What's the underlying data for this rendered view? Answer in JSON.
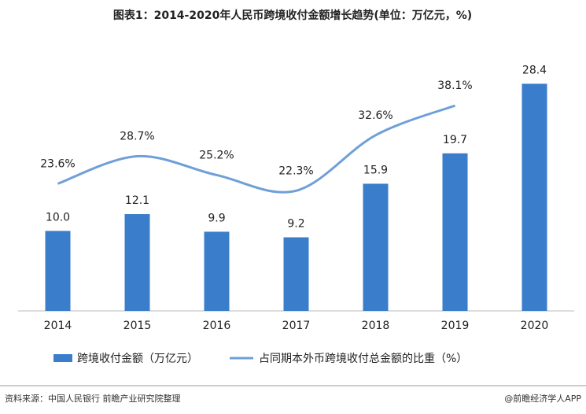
{
  "chart_data": {
    "type": "bar_line",
    "title": "图表1：2014-2020年人民币跨境收付金额增长趋势(单位：万亿元，%)",
    "categories": [
      "2014",
      "2015",
      "2016",
      "2017",
      "2018",
      "2019",
      "2020"
    ],
    "series": [
      {
        "name": "跨境收付金额（万亿元）",
        "type": "bar",
        "color": "#3a7dcb",
        "values": [
          10.0,
          12.1,
          9.9,
          9.2,
          15.9,
          19.7,
          28.4
        ],
        "value_labels": [
          "10.0",
          "12.1",
          "9.9",
          "9.2",
          "15.9",
          "19.7",
          "28.4"
        ]
      },
      {
        "name": "占同期本外币跨境收付总金额的比重（%）",
        "type": "line",
        "axis": "y2",
        "color": "#6f9fd8",
        "values": [
          23.6,
          28.7,
          25.2,
          22.3,
          32.6,
          38.1,
          null
        ],
        "value_labels": [
          "23.6%",
          "28.7%",
          "25.2%",
          "22.3%",
          "32.6%",
          "38.1%",
          null
        ]
      }
    ],
    "ylim": [
      0,
      31
    ],
    "y2lim": [
      0,
      46
    ],
    "source": "资料来源：中国人民银行 前瞻产业研究院整理",
    "credit": "@前瞻经济学人APP"
  }
}
